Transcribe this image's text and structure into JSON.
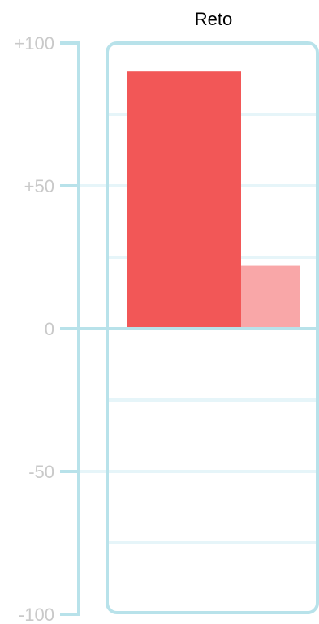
{
  "chart_data": {
    "type": "bar",
    "title": "Reto",
    "xlabel": "",
    "ylabel": "",
    "ylim": [
      -100,
      100
    ],
    "grid": true,
    "ticks": [
      {
        "value": 100,
        "label": "+100"
      },
      {
        "value": 50,
        "label": "+50"
      },
      {
        "value": 0,
        "label": "0"
      },
      {
        "value": -50,
        "label": "-50"
      },
      {
        "value": -100,
        "label": "-100"
      }
    ],
    "minor_gridlines": [
      75,
      25,
      -25,
      -75
    ],
    "bars": [
      {
        "value": 90,
        "color": "#f25757"
      },
      {
        "value": 22,
        "color": "#f9a7a8"
      }
    ]
  },
  "colors": {
    "axis": "#b8e2ea",
    "grid": "#e6f5f9",
    "tick_text": "#c9c9c9",
    "title_text": "#000000"
  }
}
